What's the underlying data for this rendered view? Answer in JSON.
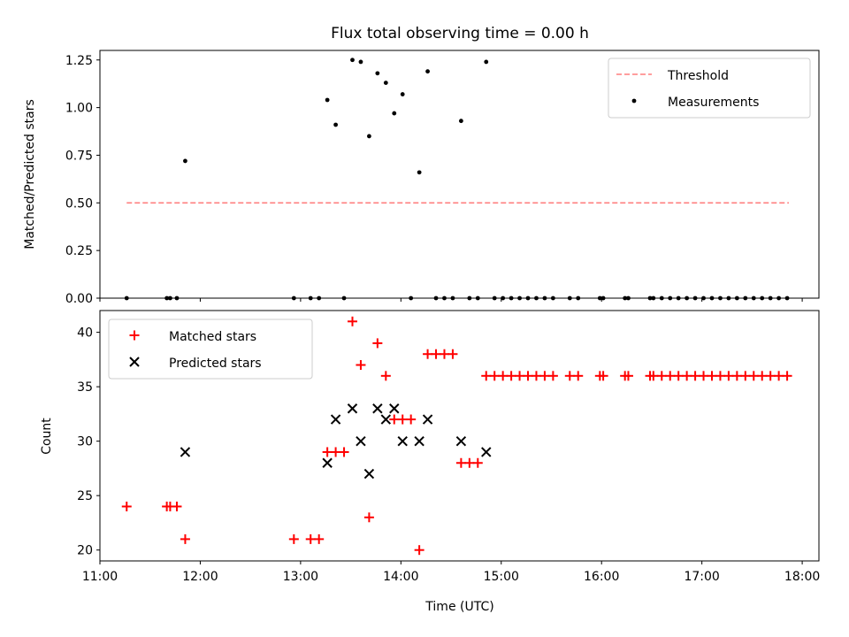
{
  "chart_data": [
    {
      "type": "scatter",
      "title": "Flux total observing time = 0.00 h",
      "xlabel": "",
      "ylabel": "Matched/Predicted stars",
      "xlim": [
        "11:00",
        "18:10"
      ],
      "ylim": [
        0,
        1.3
      ],
      "yticks": [
        0,
        0.25,
        0.5,
        0.75,
        1.0,
        1.25
      ],
      "ytick_labels": [
        "0.00",
        "0.25",
        "0.50",
        "0.75",
        "1.00",
        "1.25"
      ],
      "legend_position": "top-right",
      "series": [
        {
          "name": "Threshold",
          "kind": "line",
          "style": "dashed",
          "color": "#ff7f7f",
          "x": [
            "11:16",
            "17:52"
          ],
          "y": [
            0.5,
            0.5
          ]
        },
        {
          "name": "Measurements",
          "kind": "points",
          "color": "#000000",
          "points": [
            [
              "11:16",
              0
            ],
            [
              "11:40",
              0
            ],
            [
              "11:42",
              0
            ],
            [
              "11:46",
              0
            ],
            [
              "11:51",
              0.72
            ],
            [
              "12:56",
              0
            ],
            [
              "13:06",
              0
            ],
            [
              "13:11",
              0
            ],
            [
              "13:16",
              1.04
            ],
            [
              "13:21",
              0.91
            ],
            [
              "13:26",
              0
            ],
            [
              "13:31",
              1.25
            ],
            [
              "13:36",
              1.24
            ],
            [
              "13:41",
              0.85
            ],
            [
              "13:46",
              1.18
            ],
            [
              "13:51",
              1.13
            ],
            [
              "13:56",
              0.97
            ],
            [
              "14:01",
              1.07
            ],
            [
              "14:06",
              0
            ],
            [
              "14:11",
              0.66
            ],
            [
              "14:16",
              1.19
            ],
            [
              "14:21",
              0
            ],
            [
              "14:26",
              0
            ],
            [
              "14:31",
              0
            ],
            [
              "14:36",
              0.93
            ],
            [
              "14:41",
              0
            ],
            [
              "14:46",
              0
            ],
            [
              "14:51",
              1.24
            ],
            [
              "14:56",
              0
            ],
            [
              "15:01",
              0
            ],
            [
              "15:06",
              0
            ],
            [
              "15:11",
              0
            ],
            [
              "15:16",
              0
            ],
            [
              "15:21",
              0
            ],
            [
              "15:26",
              0
            ],
            [
              "15:31",
              0
            ],
            [
              "15:41",
              0
            ],
            [
              "15:46",
              0
            ],
            [
              "15:59",
              0
            ],
            [
              "16:01",
              0
            ],
            [
              "16:14",
              0
            ],
            [
              "16:16",
              0
            ],
            [
              "16:29",
              0
            ],
            [
              "16:31",
              0
            ],
            [
              "16:36",
              0
            ],
            [
              "16:41",
              0
            ],
            [
              "16:46",
              0
            ],
            [
              "16:51",
              0
            ],
            [
              "16:56",
              0
            ],
            [
              "17:01",
              0
            ],
            [
              "17:06",
              0
            ],
            [
              "17:11",
              0
            ],
            [
              "17:16",
              0
            ],
            [
              "17:21",
              0
            ],
            [
              "17:26",
              0
            ],
            [
              "17:31",
              0
            ],
            [
              "17:36",
              0
            ],
            [
              "17:41",
              0
            ],
            [
              "17:46",
              0
            ],
            [
              "17:51",
              0
            ]
          ]
        }
      ]
    },
    {
      "type": "scatter",
      "title": "",
      "xlabel": "Time (UTC)",
      "ylabel": "Count",
      "xlim": [
        "11:00",
        "18:10"
      ],
      "ylim": [
        19,
        42
      ],
      "yticks": [
        20,
        25,
        30,
        35,
        40
      ],
      "ytick_labels": [
        "20",
        "25",
        "30",
        "35",
        "40"
      ],
      "xticks": [
        "11:00",
        "12:00",
        "13:00",
        "14:00",
        "15:00",
        "16:00",
        "17:00",
        "18:00"
      ],
      "legend_position": "top-left",
      "series": [
        {
          "name": "Matched stars",
          "kind": "plus",
          "color": "#ff0000",
          "points": [
            [
              "11:16",
              24
            ],
            [
              "11:40",
              24
            ],
            [
              "11:42",
              24
            ],
            [
              "11:46",
              24
            ],
            [
              "11:51",
              21
            ],
            [
              "12:56",
              21
            ],
            [
              "13:06",
              21
            ],
            [
              "13:11",
              21
            ],
            [
              "13:16",
              29
            ],
            [
              "13:21",
              29
            ],
            [
              "13:26",
              29
            ],
            [
              "13:31",
              41
            ],
            [
              "13:36",
              37
            ],
            [
              "13:41",
              23
            ],
            [
              "13:46",
              39
            ],
            [
              "13:51",
              36
            ],
            [
              "13:56",
              32
            ],
            [
              "14:01",
              32
            ],
            [
              "14:06",
              32
            ],
            [
              "14:11",
              20
            ],
            [
              "14:16",
              38
            ],
            [
              "14:21",
              38
            ],
            [
              "14:26",
              38
            ],
            [
              "14:31",
              38
            ],
            [
              "14:36",
              28
            ],
            [
              "14:41",
              28
            ],
            [
              "14:46",
              28
            ],
            [
              "14:51",
              36
            ],
            [
              "14:56",
              36
            ],
            [
              "15:01",
              36
            ],
            [
              "15:06",
              36
            ],
            [
              "15:11",
              36
            ],
            [
              "15:16",
              36
            ],
            [
              "15:21",
              36
            ],
            [
              "15:26",
              36
            ],
            [
              "15:31",
              36
            ],
            [
              "15:41",
              36
            ],
            [
              "15:46",
              36
            ],
            [
              "15:59",
              36
            ],
            [
              "16:01",
              36
            ],
            [
              "16:14",
              36
            ],
            [
              "16:16",
              36
            ],
            [
              "16:29",
              36
            ],
            [
              "16:31",
              36
            ],
            [
              "16:36",
              36
            ],
            [
              "16:41",
              36
            ],
            [
              "16:46",
              36
            ],
            [
              "16:51",
              36
            ],
            [
              "16:56",
              36
            ],
            [
              "17:01",
              36
            ],
            [
              "17:06",
              36
            ],
            [
              "17:11",
              36
            ],
            [
              "17:16",
              36
            ],
            [
              "17:21",
              36
            ],
            [
              "17:26",
              36
            ],
            [
              "17:31",
              36
            ],
            [
              "17:36",
              36
            ],
            [
              "17:41",
              36
            ],
            [
              "17:46",
              36
            ],
            [
              "17:51",
              36
            ]
          ]
        },
        {
          "name": "Predicted stars",
          "kind": "x",
          "color": "#000000",
          "points": [
            [
              "11:51",
              29
            ],
            [
              "13:16",
              28
            ],
            [
              "13:21",
              32
            ],
            [
              "13:31",
              33
            ],
            [
              "13:36",
              30
            ],
            [
              "13:41",
              27
            ],
            [
              "13:46",
              33
            ],
            [
              "13:51",
              32
            ],
            [
              "13:56",
              33
            ],
            [
              "14:01",
              30
            ],
            [
              "14:11",
              30
            ],
            [
              "14:16",
              32
            ],
            [
              "14:36",
              30
            ],
            [
              "14:51",
              29
            ]
          ]
        }
      ]
    }
  ]
}
